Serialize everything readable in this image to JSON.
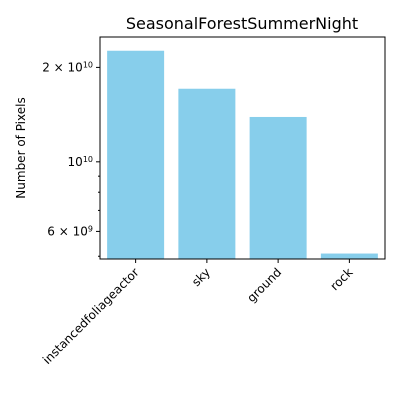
{
  "chart_data": {
    "type": "bar",
    "title": "SeasonalForestSummerNight",
    "xlabel": "",
    "ylabel": "Number of Pixels",
    "yscale": "log",
    "ylim": [
      4900000000,
      25000000000
    ],
    "categories": [
      "instancedfoliageactor",
      "sky",
      "ground",
      "rock"
    ],
    "values": [
      22600000000,
      17100000000,
      13900000000,
      5100000000
    ],
    "bar_color": "#87ceeb",
    "grid": false,
    "legend": "none",
    "yticks": {
      "major": [
        {
          "value": 6000000000,
          "mantissa": "6",
          "base": "10",
          "exp": "9"
        },
        {
          "value": 10000000000,
          "mantissa": "",
          "base": "10",
          "exp": "10"
        },
        {
          "value": 20000000000,
          "mantissa": "2",
          "base": "10",
          "exp": "10"
        }
      ],
      "minor": [
        5000000000,
        7000000000,
        8000000000,
        9000000000
      ]
    }
  }
}
